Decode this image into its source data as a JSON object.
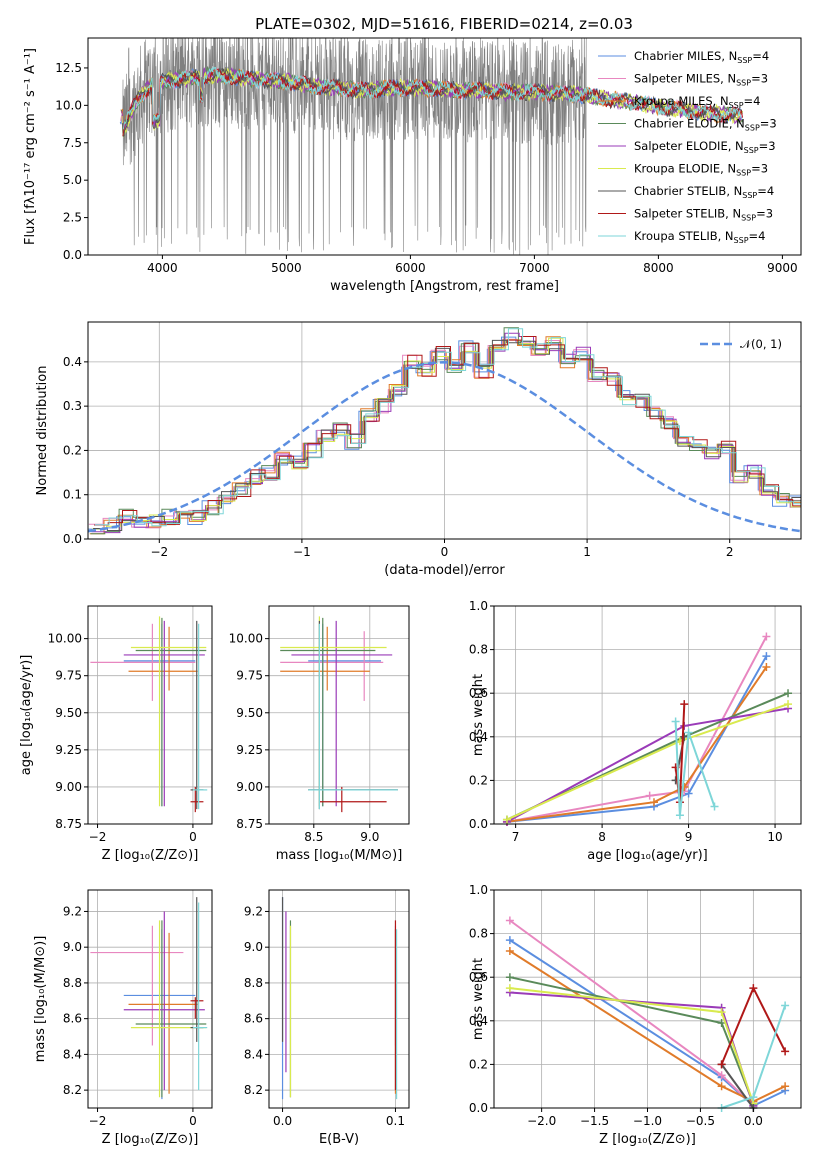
{
  "title": "PLATE=0302, MJD=51616, FIBERID=0214, z=0.03",
  "models": [
    {
      "name": "Chabrier MILES, N",
      "sub": "SSP",
      "tail": "=4",
      "color": "#5b8ee0"
    },
    {
      "name": "Salpeter MILES, N",
      "sub": "SSP",
      "tail": "=3",
      "color": "#e887c0"
    },
    {
      "name": "Kroupa MILES, N",
      "sub": "SSP",
      "tail": "=4",
      "color": "#e07b2a"
    },
    {
      "name": "Chabrier ELODIE, N",
      "sub": "SSP",
      "tail": "=3",
      "color": "#5a8a5a"
    },
    {
      "name": "Salpeter ELODIE, N",
      "sub": "SSP",
      "tail": "=3",
      "color": "#9a3bb8"
    },
    {
      "name": "Kroupa ELODIE, N",
      "sub": "SSP",
      "tail": "=3",
      "color": "#d9ea4f"
    },
    {
      "name": "Chabrier STELIB, N",
      "sub": "SSP",
      "tail": "=4",
      "color": "#555555"
    },
    {
      "name": "Salpeter STELIB, N",
      "sub": "SSP",
      "tail": "=3",
      "color": "#b01818"
    },
    {
      "name": "Kroupa STELIB, N",
      "sub": "SSP",
      "tail": "=4",
      "color": "#7ed6d8"
    }
  ],
  "chart_data": [
    {
      "id": "spectrum",
      "type": "line",
      "xlabel": "wavelength [Angstrom, rest frame]",
      "ylabel": "Flux [fλ10⁻¹⁷ erg cm⁻² s⁻¹ A⁻¹]",
      "xlim": [
        3400,
        9150
      ],
      "ylim": [
        0,
        14.5
      ],
      "xticks": [
        "4000",
        "5000",
        "6000",
        "7000",
        "8000",
        "9000"
      ],
      "yticks": [
        "0.0",
        "2.5",
        "5.0",
        "7.5",
        "10.0",
        "12.5"
      ],
      "data_color": "#808080",
      "data_range": [
        3680,
        7420
      ],
      "model_range": [
        3660,
        8680
      ],
      "continuum": [
        [
          3680,
          8.2
        ],
        [
          3750,
          9.6
        ],
        [
          3800,
          10.4
        ],
        [
          3900,
          11.3
        ],
        [
          4000,
          11.6
        ],
        [
          4200,
          11.8
        ],
        [
          4400,
          12.0
        ],
        [
          4600,
          11.9
        ],
        [
          4800,
          11.7
        ],
        [
          5000,
          11.6
        ],
        [
          5200,
          11.3
        ],
        [
          5400,
          11.2
        ],
        [
          5600,
          11.0
        ],
        [
          5800,
          11.1
        ],
        [
          6000,
          11.2
        ],
        [
          6200,
          11.1
        ],
        [
          6400,
          11.0
        ],
        [
          6600,
          11.0
        ],
        [
          6800,
          10.9
        ],
        [
          7000,
          10.9
        ],
        [
          7200,
          10.8
        ],
        [
          7400,
          10.7
        ],
        [
          7600,
          10.4
        ],
        [
          7800,
          10.2
        ],
        [
          8000,
          9.9
        ],
        [
          8200,
          9.7
        ],
        [
          8400,
          9.5
        ],
        [
          8680,
          9.3
        ]
      ]
    },
    {
      "id": "residuals",
      "type": "line",
      "xlabel": "(data-model)/error",
      "ylabel": "Normed distribution",
      "xlim": [
        -2.5,
        2.5
      ],
      "ylim": [
        0,
        0.49
      ],
      "xticks": [
        "−2",
        "−1",
        "0",
        "1",
        "2"
      ],
      "yticks": [
        "0.0",
        "0.1",
        "0.2",
        "0.3",
        "0.4"
      ],
      "legend": "𝒩(0, 1)",
      "gaussian": {
        "mu": 0,
        "sigma": 1,
        "color": "#5b8ee0"
      },
      "bin_width": 0.1,
      "hist_base": [
        0.02,
        0.03,
        0.05,
        0.04,
        0.04,
        0.05,
        0.06,
        0.05,
        0.07,
        0.09,
        0.11,
        0.14,
        0.15,
        0.18,
        0.17,
        0.2,
        0.23,
        0.25,
        0.22,
        0.28,
        0.3,
        0.34,
        0.4,
        0.38,
        0.42,
        0.39,
        0.43,
        0.38,
        0.44,
        0.46,
        0.45,
        0.43,
        0.44,
        0.4,
        0.42,
        0.37,
        0.36,
        0.32,
        0.31,
        0.28,
        0.26,
        0.22,
        0.21,
        0.19,
        0.21,
        0.14,
        0.15,
        0.11,
        0.09,
        0.08
      ]
    },
    {
      "id": "age-vs-Z",
      "type": "scatter",
      "xlabel": "Z [log₁₀(Z/Z⊙)]",
      "ylabel": "age  [log₁₀(age/yr)]",
      "xlim": [
        -2.2,
        0.4
      ],
      "ylim": [
        8.75,
        10.22
      ],
      "xticks": [
        "−2",
        "0"
      ],
      "yticks": [
        "8.75",
        "9.00",
        "9.25",
        "9.50",
        "9.75",
        "10.00"
      ],
      "errorbars": [
        {
          "m": 0,
          "x": -0.65,
          "xe": [
            -1.45,
            0.05
          ],
          "y": 9.85,
          "ye": [
            8.87,
            10.1
          ]
        },
        {
          "m": 1,
          "x": -0.85,
          "xe": [
            -2.15,
            0.05
          ],
          "y": 9.84,
          "ye": [
            9.58,
            10.1
          ]
        },
        {
          "m": 2,
          "x": -0.5,
          "xe": [
            -1.35,
            0.1
          ],
          "y": 9.78,
          "ye": [
            9.65,
            10.08
          ]
        },
        {
          "m": 3,
          "x": -0.65,
          "xe": [
            -1.2,
            0.28
          ],
          "y": 9.92,
          "ye": [
            8.87,
            10.14
          ]
        },
        {
          "m": 4,
          "x": -0.6,
          "xe": [
            -1.45,
            0.25
          ],
          "y": 9.89,
          "ye": [
            8.87,
            10.12
          ]
        },
        {
          "m": 5,
          "x": -0.7,
          "xe": [
            -1.3,
            0.28
          ],
          "y": 9.94,
          "ye": [
            8.87,
            10.15
          ]
        },
        {
          "m": 6,
          "x": 0.08,
          "xe": [
            -0.05,
            0.22
          ],
          "y": 8.98,
          "ye": [
            8.85,
            10.12
          ]
        },
        {
          "m": 7,
          "x": 0.05,
          "xe": [
            -0.05,
            0.22
          ],
          "y": 8.9,
          "ye": [
            8.83,
            9.0
          ]
        },
        {
          "m": 8,
          "x": 0.12,
          "xe": [
            0.0,
            0.3
          ],
          "y": 8.98,
          "ye": [
            8.85,
            10.1
          ]
        }
      ]
    },
    {
      "id": "age-vs-mass",
      "type": "scatter",
      "xlabel": "mass [log₁₀(M/M⊙)]",
      "ylabel": "",
      "xlim": [
        8.1,
        9.35
      ],
      "ylim": [
        8.75,
        10.22
      ],
      "xticks": [
        "8.5",
        "9.0"
      ],
      "yticks": [
        "8.75",
        "9.00",
        "9.25",
        "9.50",
        "9.75",
        "10.00"
      ],
      "errorbars": [
        {
          "m": 0,
          "x": 8.58,
          "xe": [
            8.45,
            9.1
          ],
          "y": 9.85,
          "ye": [
            8.87,
            10.1
          ]
        },
        {
          "m": 1,
          "x": 8.95,
          "xe": [
            8.2,
            9.12
          ],
          "y": 9.84,
          "ye": [
            9.58,
            10.05
          ]
        },
        {
          "m": 2,
          "x": 8.62,
          "xe": [
            8.2,
            9.0
          ],
          "y": 9.78,
          "ye": [
            9.65,
            10.08
          ]
        },
        {
          "m": 3,
          "x": 8.58,
          "xe": [
            8.2,
            9.05
          ],
          "y": 9.92,
          "ye": [
            8.87,
            10.14
          ]
        },
        {
          "m": 4,
          "x": 8.7,
          "xe": [
            8.3,
            9.2
          ],
          "y": 9.89,
          "ye": [
            8.87,
            10.12
          ]
        },
        {
          "m": 5,
          "x": 8.55,
          "xe": [
            8.2,
            9.15
          ],
          "y": 9.94,
          "ye": [
            8.87,
            10.15
          ]
        },
        {
          "m": 6,
          "x": 8.55,
          "xe": [
            8.45,
            9.25
          ],
          "y": 8.98,
          "ye": [
            8.85,
            10.12
          ]
        },
        {
          "m": 7,
          "x": 8.75,
          "xe": [
            8.55,
            9.15
          ],
          "y": 8.9,
          "ye": [
            8.83,
            9.0
          ]
        },
        {
          "m": 8,
          "x": 8.55,
          "xe": [
            8.45,
            9.25
          ],
          "y": 8.98,
          "ye": [
            8.85,
            10.1
          ]
        }
      ]
    },
    {
      "id": "weight-vs-age",
      "type": "line",
      "xlabel": "age  [log₁₀(age/yr)]",
      "ylabel": "mass weight",
      "xlim": [
        6.75,
        10.3
      ],
      "ylim": [
        0,
        1.0
      ],
      "xticks": [
        "7",
        "8",
        "9",
        "10"
      ],
      "yticks": [
        "0.0",
        "0.2",
        "0.4",
        "0.6",
        "0.8",
        "1.0"
      ],
      "series": [
        {
          "m": 0,
          "x": [
            6.9,
            8.6,
            9.0,
            9.9
          ],
          "y": [
            0.01,
            0.08,
            0.14,
            0.77
          ]
        },
        {
          "m": 1,
          "x": [
            6.9,
            8.55,
            8.95,
            9.9
          ],
          "y": [
            0.01,
            0.13,
            0.15,
            0.86
          ]
        },
        {
          "m": 2,
          "x": [
            6.9,
            8.6,
            8.95,
            9.9
          ],
          "y": [
            0.01,
            0.1,
            0.17,
            0.72
          ]
        },
        {
          "m": 3,
          "x": [
            6.9,
            8.95,
            10.15
          ],
          "y": [
            0.02,
            0.4,
            0.6
          ]
        },
        {
          "m": 4,
          "x": [
            6.9,
            8.95,
            10.15
          ],
          "y": [
            0.01,
            0.45,
            0.53
          ]
        },
        {
          "m": 5,
          "x": [
            6.9,
            8.9,
            10.15
          ],
          "y": [
            0.02,
            0.38,
            0.55
          ]
        },
        {
          "m": 6,
          "x": [
            8.85,
            8.95
          ],
          "y": [
            0.2,
            0.4
          ]
        },
        {
          "m": 7,
          "x": [
            8.85,
            8.9,
            8.95
          ],
          "y": [
            0.26,
            0.1,
            0.55
          ]
        },
        {
          "m": 8,
          "x": [
            8.85,
            8.9,
            9.0,
            9.3
          ],
          "y": [
            0.47,
            0.04,
            0.42,
            0.08
          ]
        }
      ]
    },
    {
      "id": "mass-vs-Z",
      "type": "scatter",
      "xlabel": "Z [log₁₀(Z/Z⊙)]",
      "ylabel": "mass [log₁₀(M/M⊙)]",
      "xlim": [
        -2.2,
        0.4
      ],
      "ylim": [
        8.1,
        9.32
      ],
      "xticks": [
        "−2",
        "0"
      ],
      "yticks": [
        "8.2",
        "8.4",
        "8.6",
        "8.8",
        "9.0",
        "9.2"
      ],
      "errorbars": [
        {
          "m": 0,
          "x": -0.65,
          "xe": [
            -1.45,
            0.05
          ],
          "y": 8.73,
          "ye": [
            8.15,
            9.1
          ]
        },
        {
          "m": 1,
          "x": -0.85,
          "xe": [
            -2.15,
            -0.2
          ],
          "y": 8.97,
          "ye": [
            8.45,
            9.12
          ]
        },
        {
          "m": 2,
          "x": -0.5,
          "xe": [
            -1.35,
            0.1
          ],
          "y": 8.68,
          "ye": [
            8.18,
            9.08
          ]
        },
        {
          "m": 3,
          "x": -0.65,
          "xe": [
            -1.2,
            0.28
          ],
          "y": 8.57,
          "ye": [
            8.16,
            9.15
          ]
        },
        {
          "m": 4,
          "x": -0.6,
          "xe": [
            -1.45,
            0.25
          ],
          "y": 8.65,
          "ye": [
            8.2,
            9.2
          ]
        },
        {
          "m": 5,
          "x": -0.7,
          "xe": [
            -1.3,
            0.28
          ],
          "y": 8.55,
          "ye": [
            8.16,
            9.15
          ]
        },
        {
          "m": 6,
          "x": 0.08,
          "xe": [
            -0.05,
            0.22
          ],
          "y": 8.55,
          "ye": [
            8.47,
            9.28
          ]
        },
        {
          "m": 7,
          "x": 0.05,
          "xe": [
            -0.05,
            0.22
          ],
          "y": 8.7,
          "ye": [
            8.6,
            8.72
          ]
        },
        {
          "m": 8,
          "x": 0.12,
          "xe": [
            0.0,
            0.3
          ],
          "y": 8.55,
          "ye": [
            8.2,
            9.25
          ]
        }
      ]
    },
    {
      "id": "mass-vs-ebv",
      "type": "scatter",
      "xlabel": "E(B-V)",
      "ylabel": "",
      "xlim": [
        -0.012,
        0.112
      ],
      "ylim": [
        8.1,
        9.32
      ],
      "xticks": [
        "0.0",
        "0.1"
      ],
      "yticks": [
        "8.2",
        "8.4",
        "8.6",
        "8.8",
        "9.0",
        "9.2"
      ],
      "errorbars": [
        {
          "m": 0,
          "x": 0.0,
          "xe": null,
          "y": 8.73,
          "ye": [
            8.15,
            9.28
          ]
        },
        {
          "m": 1,
          "x": 0.1,
          "xe": null,
          "y": 8.97,
          "ye": [
            8.45,
            9.12
          ]
        },
        {
          "m": 2,
          "x": 0.1,
          "xe": null,
          "y": 8.68,
          "ye": [
            8.18,
            9.1
          ]
        },
        {
          "m": 3,
          "x": 0.007,
          "xe": null,
          "y": 8.57,
          "ye": [
            8.16,
            9.15
          ]
        },
        {
          "m": 4,
          "x": 0.003,
          "xe": null,
          "y": 8.65,
          "ye": [
            8.3,
            9.2
          ]
        },
        {
          "m": 5,
          "x": 0.007,
          "xe": null,
          "y": 8.55,
          "ye": [
            8.16,
            9.12
          ]
        },
        {
          "m": 6,
          "x": 0.0,
          "xe": null,
          "y": 8.55,
          "ye": [
            8.47,
            9.28
          ]
        },
        {
          "m": 7,
          "x": 0.1,
          "xe": null,
          "y": 8.7,
          "ye": [
            8.2,
            9.15
          ]
        },
        {
          "m": 8,
          "x": 0.101,
          "xe": null,
          "y": 8.55,
          "ye": [
            8.15,
            9.1
          ]
        }
      ]
    },
    {
      "id": "weight-vs-Z",
      "type": "line",
      "xlabel": "Z [log₁₀(Z/Z⊙)]",
      "ylabel": "mass weight",
      "xlim": [
        -2.45,
        0.45
      ],
      "ylim": [
        0,
        1.0
      ],
      "xticks": [
        "−2.0",
        "−1.5",
        "−1.0",
        "−0.5",
        "0.0"
      ],
      "yticks": [
        "0.0",
        "0.2",
        "0.4",
        "0.6",
        "0.8",
        "1.0"
      ],
      "series": [
        {
          "m": 0,
          "x": [
            -2.3,
            -0.3,
            0.0,
            0.3
          ],
          "y": [
            0.77,
            0.14,
            0.01,
            0.08
          ]
        },
        {
          "m": 1,
          "x": [
            -2.3,
            -0.3,
            0.0
          ],
          "y": [
            0.86,
            0.15,
            0.01
          ]
        },
        {
          "m": 2,
          "x": [
            -2.3,
            -0.3,
            0.0,
            0.3
          ],
          "y": [
            0.72,
            0.1,
            0.03,
            0.1
          ]
        },
        {
          "m": 3,
          "x": [
            -2.3,
            -0.3,
            0.0
          ],
          "y": [
            0.6,
            0.39,
            0.02
          ]
        },
        {
          "m": 4,
          "x": [
            -2.3,
            -0.3,
            0.0
          ],
          "y": [
            0.53,
            0.46,
            0.01
          ]
        },
        {
          "m": 5,
          "x": [
            -2.3,
            -0.3,
            0.0
          ],
          "y": [
            0.55,
            0.44,
            0.02
          ]
        },
        {
          "m": 6,
          "x": [
            -0.3,
            0.0
          ],
          "y": [
            0.2,
            0.0
          ]
        },
        {
          "m": 7,
          "x": [
            -0.3,
            0.0,
            0.3
          ],
          "y": [
            0.2,
            0.55,
            0.26
          ]
        },
        {
          "m": 8,
          "x": [
            -0.3,
            0.0,
            0.3
          ],
          "y": [
            0.0,
            0.05,
            0.47
          ]
        }
      ]
    }
  ]
}
